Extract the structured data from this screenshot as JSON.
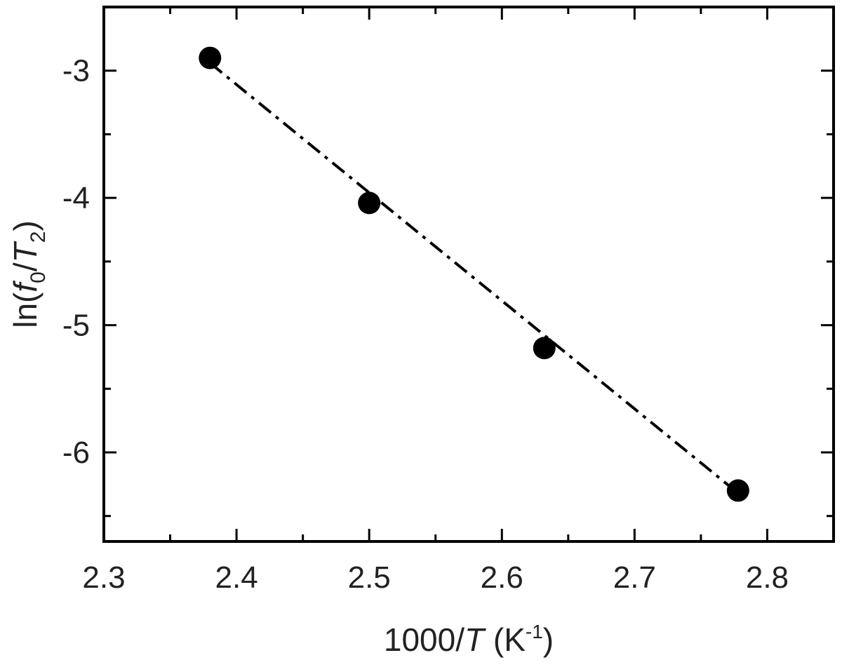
{
  "chart_data": {
    "type": "scatter",
    "xlabel": {
      "prefix": "1000/",
      "var": "T",
      "unit_open": " (K",
      "unit_sup": "-1",
      "unit_close": ")"
    },
    "ylabel": {
      "prefix": "ln(",
      "var1": "f",
      "sub1": "0",
      "slash": "/",
      "var2": "T",
      "sub2": "2",
      "suffix": ")"
    },
    "xlim": [
      2.3,
      2.85
    ],
    "ylim": [
      -6.7,
      -2.5
    ],
    "x_ticks": [
      2.3,
      2.4,
      2.5,
      2.6,
      2.7,
      2.8
    ],
    "x_tick_labels": [
      "2.3",
      "2.4",
      "2.5",
      "2.6",
      "2.7",
      "2.8"
    ],
    "y_ticks": [
      -3,
      -4,
      -5,
      -6
    ],
    "y_tick_labels": [
      "-3",
      "-4",
      "-5",
      "-6"
    ],
    "grid": false,
    "legend": "none",
    "series": [
      {
        "marker": "filled-circle",
        "color": "#000000",
        "x": [
          2.38,
          2.5,
          2.632,
          2.778
        ],
        "y": [
          -2.9,
          -4.04,
          -5.18,
          -6.3
        ]
      }
    ],
    "fit_line": {
      "style": "dash-dot",
      "color": "#000000",
      "x": [
        2.38,
        2.778
      ],
      "y": [
        -2.94,
        -6.32
      ]
    }
  }
}
